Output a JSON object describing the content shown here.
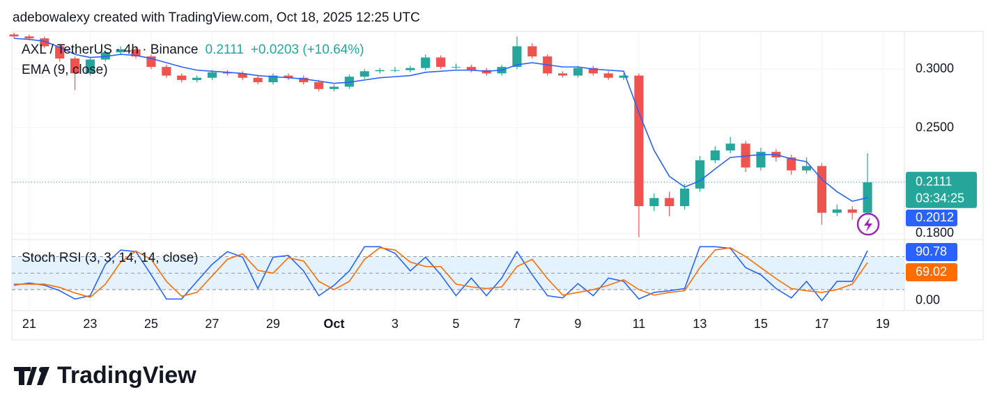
{
  "header": {
    "text": "adebowalexy created with TradingView.com, Oct 18, 2025 12:25 UTC"
  },
  "chart_data": [
    {
      "type": "candlestick",
      "title": "AXL / TetherUS · 4h · Binance",
      "change_label": "+0.0203 (+10.64%)",
      "countdown": "03:34:25",
      "log_scale": true,
      "grid": true,
      "up_color": "#26a69a",
      "down_color": "#ef5350",
      "xlim": [
        -0.57,
        28.71
      ],
      "xticks": [
        {
          "value": 0,
          "label": "21"
        },
        {
          "value": 2,
          "label": "23"
        },
        {
          "value": 4,
          "label": "25"
        },
        {
          "value": 6,
          "label": "27"
        },
        {
          "value": 8,
          "label": "29"
        },
        {
          "value": 10,
          "label": "Oct"
        },
        {
          "value": 12,
          "label": "3"
        },
        {
          "value": 14,
          "label": "5"
        },
        {
          "value": 16,
          "label": "7"
        },
        {
          "value": 18,
          "label": "9"
        },
        {
          "value": 20,
          "label": "11"
        },
        {
          "value": 22,
          "label": "13"
        },
        {
          "value": 24,
          "label": "15"
        },
        {
          "value": 26,
          "label": "17"
        },
        {
          "value": 28,
          "label": "19"
        }
      ],
      "ylim": [
        0.1767,
        0.3373
      ],
      "yticks": [
        {
          "value": 0.3,
          "label": "0.3000"
        },
        {
          "value": 0.25,
          "label": "0.2500"
        },
        {
          "value": 0.18,
          "label": "0.1800"
        }
      ],
      "x": [
        -0.5,
        0,
        0.5,
        1,
        1.5,
        2,
        2.5,
        3,
        3.5,
        4,
        4.5,
        5,
        5.5,
        6,
        6.5,
        7,
        7.5,
        8,
        8.5,
        9,
        9.5,
        10,
        10.5,
        11,
        11.5,
        12,
        12.5,
        13,
        13.5,
        14,
        14.5,
        15,
        15.5,
        16,
        16.5,
        17,
        17.5,
        18,
        18.5,
        19,
        19.5,
        20,
        20.5,
        21,
        21.5,
        22,
        22.5,
        23,
        23.5,
        24,
        24.5,
        25,
        25.5,
        26,
        26.5,
        27,
        27.5
      ],
      "open": [
        0.334,
        0.332,
        0.33,
        0.322,
        0.31,
        0.296,
        0.309,
        0.316,
        0.319,
        0.312,
        0.302,
        0.294,
        0.29,
        0.292,
        0.297,
        0.296,
        0.292,
        0.288,
        0.294,
        0.292,
        0.288,
        0.282,
        0.284,
        0.293,
        0.298,
        0.299,
        0.299,
        0.301,
        0.311,
        0.302,
        0.302,
        0.299,
        0.296,
        0.302,
        0.322,
        0.312,
        0.296,
        0.294,
        0.301,
        0.296,
        0.292,
        0.294,
        0.196,
        0.201,
        0.196,
        0.207,
        0.226,
        0.233,
        0.238,
        0.221,
        0.232,
        0.228,
        0.219,
        0.222,
        0.192,
        0.194,
        0.192
      ],
      "high": [
        0.336,
        0.334,
        0.332,
        0.324,
        0.312,
        0.311,
        0.318,
        0.322,
        0.321,
        0.314,
        0.304,
        0.296,
        0.294,
        0.299,
        0.299,
        0.298,
        0.294,
        0.296,
        0.296,
        0.294,
        0.29,
        0.286,
        0.295,
        0.3,
        0.301,
        0.302,
        0.303,
        0.314,
        0.313,
        0.305,
        0.304,
        0.301,
        0.304,
        0.332,
        0.325,
        0.314,
        0.298,
        0.303,
        0.303,
        0.298,
        0.296,
        0.296,
        0.204,
        0.205,
        0.21,
        0.229,
        0.236,
        0.243,
        0.24,
        0.235,
        0.234,
        0.23,
        0.228,
        0.224,
        0.197,
        0.196,
        0.231
      ],
      "low": [
        0.33,
        0.328,
        0.32,
        0.307,
        0.281,
        0.294,
        0.307,
        0.314,
        0.31,
        0.3,
        0.292,
        0.288,
        0.288,
        0.29,
        0.294,
        0.29,
        0.286,
        0.286,
        0.29,
        0.286,
        0.28,
        0.28,
        0.282,
        0.291,
        0.296,
        0.297,
        0.297,
        0.299,
        0.3,
        0.3,
        0.297,
        0.294,
        0.294,
        0.3,
        0.31,
        0.294,
        0.292,
        0.292,
        0.294,
        0.29,
        0.29,
        0.178,
        0.193,
        0.19,
        0.194,
        0.205,
        0.224,
        0.231,
        0.218,
        0.219,
        0.225,
        0.216,
        0.217,
        0.185,
        0.19,
        0.188,
        0.19
      ],
      "close": [
        0.332,
        0.33,
        0.322,
        0.31,
        0.296,
        0.309,
        0.316,
        0.319,
        0.312,
        0.302,
        0.294,
        0.29,
        0.292,
        0.297,
        0.296,
        0.292,
        0.288,
        0.294,
        0.292,
        0.288,
        0.282,
        0.284,
        0.293,
        0.298,
        0.299,
        0.299,
        0.301,
        0.311,
        0.302,
        0.302,
        0.299,
        0.296,
        0.302,
        0.322,
        0.312,
        0.296,
        0.294,
        0.301,
        0.296,
        0.292,
        0.294,
        0.196,
        0.201,
        0.196,
        0.207,
        0.226,
        0.233,
        0.238,
        0.221,
        0.232,
        0.228,
        0.219,
        0.222,
        0.192,
        0.194,
        0.192,
        0.2111
      ],
      "series": [
        {
          "name": "EMA (9, close)",
          "color": "#2962ff",
          "values": [
            0.33,
            0.329,
            0.327,
            0.321,
            0.314,
            0.311,
            0.312,
            0.314,
            0.313,
            0.31,
            0.306,
            0.302,
            0.299,
            0.298,
            0.297,
            0.296,
            0.294,
            0.293,
            0.292,
            0.291,
            0.289,
            0.287,
            0.288,
            0.29,
            0.292,
            0.293,
            0.294,
            0.297,
            0.298,
            0.299,
            0.299,
            0.298,
            0.299,
            0.304,
            0.306,
            0.304,
            0.302,
            0.302,
            0.3,
            0.299,
            0.298,
            0.262,
            0.233,
            0.215,
            0.208,
            0.212,
            0.22,
            0.228,
            0.229,
            0.23,
            0.23,
            0.227,
            0.225,
            0.213,
            0.205,
            0.199,
            0.2012
          ]
        }
      ]
    },
    {
      "type": "line",
      "title": "Stoch RSI (3, 3, 14, 14, close)",
      "ylim": [
        -18,
        111
      ],
      "yticks": [
        {
          "value": 0,
          "label": "0.00"
        }
      ],
      "bands": [
        80,
        50,
        20
      ],
      "band_fill": "#e3f2fd",
      "x": [
        -0.5,
        0,
        0.5,
        1,
        1.5,
        2,
        2.5,
        3,
        3.5,
        4,
        4.5,
        5,
        5.5,
        6,
        6.5,
        7,
        7.5,
        8,
        8.5,
        9,
        9.5,
        10,
        10.5,
        11,
        11.5,
        12,
        12.5,
        13,
        13.5,
        14,
        14.5,
        15,
        15.5,
        16,
        16.5,
        17,
        17.5,
        18,
        18.5,
        19,
        19.5,
        20,
        20.5,
        21,
        21.5,
        22,
        22.5,
        23,
        23.5,
        24,
        24.5,
        25,
        25.5,
        26,
        26.5,
        27,
        27.5
      ],
      "series": [
        {
          "color": "#2962ff",
          "values": [
            28,
            32,
            28,
            18,
            3,
            9,
            66,
            92,
            89,
            47,
            3,
            3,
            35,
            66,
            89,
            79,
            22,
            79,
            82,
            54,
            9,
            28,
            54,
            98,
            98,
            86,
            54,
            79,
            47,
            9,
            41,
            9,
            41,
            89,
            47,
            9,
            5,
            31,
            9,
            41,
            35,
            3,
            15,
            18,
            22,
            98,
            98,
            95,
            60,
            47,
            22,
            5,
            35,
            0,
            35,
            35,
            90.78
          ]
        },
        {
          "color": "#ff6d00",
          "values": [
            30,
            30,
            30,
            24,
            14,
            6,
            30,
            70,
            90,
            75,
            35,
            8,
            15,
            45,
            75,
            85,
            55,
            50,
            78,
            72,
            35,
            20,
            35,
            75,
            96,
            92,
            70,
            62,
            62,
            30,
            25,
            22,
            25,
            62,
            75,
            40,
            10,
            15,
            20,
            28,
            38,
            20,
            10,
            15,
            18,
            60,
            92,
            96,
            80,
            60,
            40,
            22,
            18,
            15,
            20,
            30,
            69.02
          ]
        }
      ]
    }
  ],
  "logo": {
    "text": "TradingView"
  }
}
